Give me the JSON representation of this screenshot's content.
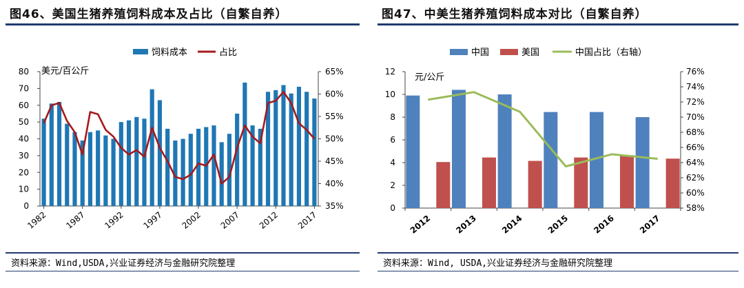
{
  "chart_data": [
    {
      "type": "bar+line",
      "title": "图46、美国生猪养殖饲料成本及占比（自繁自养）",
      "ylabel": "美元/百公斤",
      "ylim": [
        0,
        80
      ],
      "yticks": [
        0,
        10,
        20,
        30,
        40,
        50,
        60,
        70,
        80
      ],
      "y2lim": [
        35,
        65
      ],
      "y2ticks": [
        "35%",
        "40%",
        "45%",
        "50%",
        "55%",
        "60%",
        "65%"
      ],
      "xticks": [
        "1982",
        "1987",
        "1992",
        "1997",
        "2002",
        "2007",
        "2012",
        "2017"
      ],
      "legend": [
        "饲料成本",
        "占比"
      ],
      "legend_position": "top-right",
      "x": [
        1982,
        1983,
        1984,
        1985,
        1986,
        1987,
        1988,
        1989,
        1990,
        1991,
        1992,
        1993,
        1994,
        1995,
        1996,
        1997,
        1998,
        1999,
        2000,
        2001,
        2002,
        2003,
        2004,
        2005,
        2006,
        2007,
        2008,
        2009,
        2010,
        2011,
        2012,
        2013,
        2014,
        2015,
        2016,
        2017
      ],
      "series": [
        {
          "name": "饲料成本",
          "type": "bar",
          "color": "#1f77b4",
          "values": [
            52,
            61,
            62,
            49,
            44,
            39,
            44,
            45,
            42,
            40,
            50,
            51,
            53,
            52,
            69.5,
            63,
            46,
            39,
            40,
            43,
            46,
            47,
            48,
            38,
            43,
            55,
            73.5,
            48,
            46,
            68,
            69,
            72,
            67,
            71,
            68,
            64
          ]
        },
        {
          "name": "占比",
          "type": "line",
          "axis": "right",
          "color": "#a31a1c",
          "values": [
            53.5,
            57.5,
            58,
            54,
            51.5,
            46.5,
            56,
            55.5,
            52,
            50.5,
            48,
            46.5,
            47.5,
            46,
            52.5,
            48,
            45,
            41.5,
            41,
            42,
            44.5,
            44,
            46.5,
            40,
            41.5,
            48,
            53,
            50.5,
            49,
            58,
            58.5,
            60.5,
            58,
            53.5,
            52,
            50
          ]
        }
      ]
    },
    {
      "type": "bar+line",
      "title": "图47、中美生猪养殖饲料成本对比（自繁自养）",
      "ylabel": "元/公斤",
      "ylim": [
        0,
        12
      ],
      "yticks": [
        0,
        2,
        4,
        6,
        8,
        10,
        12
      ],
      "y2lim": [
        58,
        76
      ],
      "y2ticks": [
        "58%",
        "60%",
        "62%",
        "64%",
        "66%",
        "68%",
        "70%",
        "72%",
        "74%",
        "76%"
      ],
      "categories": [
        "2012",
        "2013",
        "2014",
        "2015",
        "2016",
        "2017"
      ],
      "legend": [
        "中国",
        "美国",
        "中国占比（右轴）"
      ],
      "legend_position": "top",
      "series": [
        {
          "name": "中国",
          "type": "bar",
          "color": "#4f81bd",
          "values": [
            9.9,
            10.4,
            10.0,
            8.45,
            8.45,
            8.0
          ]
        },
        {
          "name": "美国",
          "type": "bar",
          "color": "#c0504d",
          "values": [
            4.05,
            4.45,
            4.15,
            4.45,
            4.65,
            4.35
          ]
        },
        {
          "name": "中国占比（右轴）",
          "type": "line",
          "axis": "right",
          "color": "#9bbb59",
          "values": [
            72.3,
            73.3,
            70.7,
            63.5,
            65.1,
            64.5
          ]
        }
      ]
    }
  ],
  "sources": {
    "left": "资料来源：Wind,USDA,兴业证券经济与金融研究院整理",
    "right": "资料来源：Wind, USDA,兴业证券经济与金融研究院整理"
  }
}
